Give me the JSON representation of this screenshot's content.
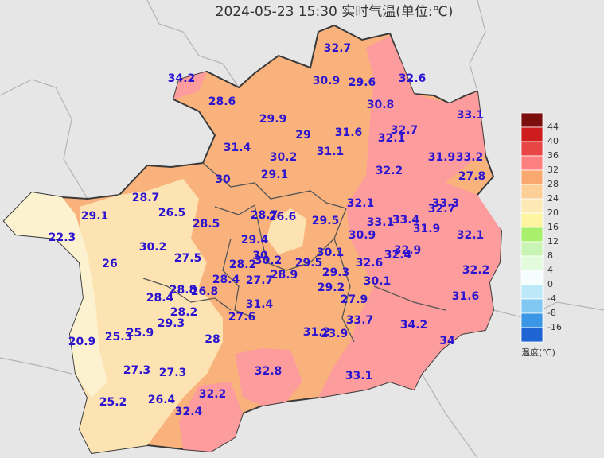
{
  "title": "2024-05-23 15:30 实时气温(单位:℃)",
  "stations": [
    32.7,
    34.2,
    30.9,
    29.6,
    32.6,
    28.6,
    30.8,
    33.1,
    29.9,
    32.7,
    29,
    31.6,
    32.1,
    31.4,
    30.2,
    31.1,
    31.9,
    33.2,
    29.1,
    32.2,
    30,
    27.8,
    28.7,
    32.1,
    33.3,
    32.7,
    29.1,
    26.5,
    28.7,
    26.6,
    29.5,
    33.1,
    33.4,
    22.3,
    28.5,
    31.9,
    32.1,
    30.9,
    29.4,
    30.2,
    30.1,
    32.4,
    32.9,
    26,
    27.5,
    28.2,
    30,
    30.2,
    29.5,
    32.6,
    28.9,
    29.3,
    32.2,
    28.4,
    27.7,
    30.1,
    28.8,
    26.8,
    29.2,
    28.4,
    27.9,
    31.6,
    31.4,
    28.2,
    27.6,
    29.3,
    33.7,
    34.2,
    31.2,
    23.9,
    25.9,
    25.3,
    28,
    20.9,
    34,
    27.3,
    27.3,
    32.8,
    33.1,
    32.2,
    26.4,
    25.2,
    32.4
  ],
  "station_color": "#2a14d0",
  "legend": {
    "title": "温度(℃)",
    "ticks": [
      44,
      40,
      36,
      32,
      28,
      24,
      20,
      16,
      12,
      8,
      4,
      0,
      -4,
      -8,
      -16
    ],
    "colors": [
      "#7d0e0e",
      "#cf1d1d",
      "#e84545",
      "#ff8080",
      "#f9a870",
      "#fbcf95",
      "#fde9b4",
      "#fff5a0",
      "#a8f06c",
      "#c9f5b4",
      "#e2fbdb",
      "#f6fdff",
      "#bde8f8",
      "#80c8f2",
      "#3c96e6",
      "#1e64d2"
    ]
  }
}
